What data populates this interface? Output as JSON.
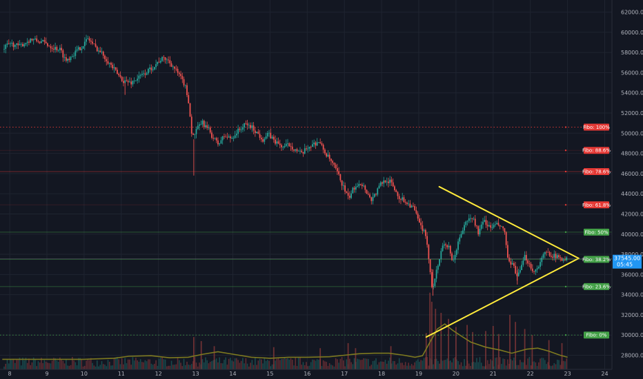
{
  "chart_data": {
    "type": "candlestick",
    "colors": {
      "background": "#131722",
      "grid": "#1f2430",
      "up": "#26a69a",
      "down": "#ef5350",
      "triangle": "#ffeb3b",
      "volume_ma": "#7e7a1f",
      "last_price": "#2196f3"
    },
    "x_axis": {
      "ticks": [
        "8",
        "9",
        "10",
        "11",
        "12",
        "13",
        "14",
        "15",
        "16",
        "17",
        "18",
        "19",
        "20",
        "21",
        "22",
        "23",
        "24"
      ]
    },
    "y_axis": {
      "ylim": [
        26600,
        63200
      ],
      "ticks": [
        "28000.00",
        "30000.00",
        "32000.00",
        "34000.00",
        "36000.00",
        "38000.00",
        "40000.00",
        "42000.00",
        "44000.00",
        "46000.00",
        "48000.00",
        "50000.00",
        "52000.00",
        "54000.00",
        "56000.00",
        "58000.00",
        "60000.00",
        "62000.00"
      ]
    },
    "price_anchors": [
      [
        7.85,
        58300
      ],
      [
        8.05,
        58900
      ],
      [
        8.3,
        58600
      ],
      [
        8.6,
        59300
      ],
      [
        8.95,
        59000
      ],
      [
        9.2,
        58500
      ],
      [
        9.4,
        58300
      ],
      [
        9.55,
        57200
      ],
      [
        9.8,
        58000
      ],
      [
        10.0,
        58700
      ],
      [
        10.15,
        59400
      ],
      [
        10.35,
        58500
      ],
      [
        10.55,
        57800
      ],
      [
        10.75,
        56800
      ],
      [
        10.95,
        55800
      ],
      [
        11.1,
        55200
      ],
      [
        11.3,
        55000
      ],
      [
        11.5,
        55500
      ],
      [
        11.7,
        56000
      ],
      [
        11.9,
        56600
      ],
      [
        12.1,
        57300
      ],
      [
        12.25,
        57400
      ],
      [
        12.4,
        56800
      ],
      [
        12.55,
        56000
      ],
      [
        12.75,
        54800
      ],
      [
        12.85,
        53200
      ],
      [
        12.95,
        49500
      ],
      [
        13.05,
        50200
      ],
      [
        13.2,
        51100
      ],
      [
        13.4,
        50300
      ],
      [
        13.5,
        49600
      ],
      [
        13.65,
        48900
      ],
      [
        13.8,
        49700
      ],
      [
        14.0,
        49500
      ],
      [
        14.2,
        50300
      ],
      [
        14.4,
        50900
      ],
      [
        14.55,
        50600
      ],
      [
        14.7,
        50000
      ],
      [
        14.85,
        49400
      ],
      [
        15.0,
        49900
      ],
      [
        15.2,
        49100
      ],
      [
        15.4,
        48600
      ],
      [
        15.55,
        48900
      ],
      [
        15.75,
        48300
      ],
      [
        15.9,
        47900
      ],
      [
        16.05,
        48600
      ],
      [
        16.2,
        48900
      ],
      [
        16.35,
        49200
      ],
      [
        16.55,
        47900
      ],
      [
        16.7,
        47100
      ],
      [
        16.85,
        46100
      ],
      [
        17.0,
        44800
      ],
      [
        17.15,
        43500
      ],
      [
        17.3,
        44600
      ],
      [
        17.45,
        45200
      ],
      [
        17.6,
        44500
      ],
      [
        17.75,
        43400
      ],
      [
        17.9,
        44100
      ],
      [
        18.0,
        44900
      ],
      [
        18.15,
        45400
      ],
      [
        18.3,
        45100
      ],
      [
        18.5,
        43700
      ],
      [
        18.7,
        43200
      ],
      [
        18.9,
        42600
      ],
      [
        19.05,
        41100
      ],
      [
        19.2,
        40100
      ],
      [
        19.3,
        38000
      ],
      [
        19.4,
        34600
      ],
      [
        19.55,
        36800
      ],
      [
        19.7,
        39200
      ],
      [
        19.85,
        38600
      ],
      [
        19.95,
        37000
      ],
      [
        20.05,
        38500
      ],
      [
        20.2,
        40300
      ],
      [
        20.35,
        41400
      ],
      [
        20.5,
        41600
      ],
      [
        20.65,
        40100
      ],
      [
        20.8,
        41400
      ],
      [
        20.95,
        40600
      ],
      [
        21.1,
        40900
      ],
      [
        21.2,
        40900
      ],
      [
        21.35,
        40200
      ],
      [
        21.45,
        37100
      ],
      [
        21.6,
        36800
      ],
      [
        21.7,
        35700
      ],
      [
        21.8,
        36700
      ],
      [
        21.9,
        37800
      ],
      [
        22.05,
        36800
      ],
      [
        22.15,
        36200
      ],
      [
        22.3,
        37200
      ],
      [
        22.45,
        38200
      ],
      [
        22.6,
        38000
      ],
      [
        22.75,
        37700
      ],
      [
        22.9,
        37600
      ],
      [
        23.0,
        37545
      ]
    ],
    "volume_ma": [
      [
        7.8,
        27600
      ],
      [
        9.0,
        27600
      ],
      [
        10.0,
        27600
      ],
      [
        10.8,
        27700
      ],
      [
        11.2,
        27900
      ],
      [
        11.8,
        27950
      ],
      [
        12.3,
        27750
      ],
      [
        12.8,
        27800
      ],
      [
        13.2,
        28100
      ],
      [
        13.6,
        28350
      ],
      [
        14.0,
        28100
      ],
      [
        14.5,
        27800
      ],
      [
        15.0,
        27700
      ],
      [
        15.5,
        27800
      ],
      [
        16.0,
        27800
      ],
      [
        16.6,
        27850
      ],
      [
        17.0,
        28000
      ],
      [
        17.4,
        28150
      ],
      [
        17.8,
        28200
      ],
      [
        18.2,
        28200
      ],
      [
        18.6,
        28000
      ],
      [
        18.9,
        27800
      ],
      [
        19.1,
        27950
      ],
      [
        19.3,
        29300
      ],
      [
        19.5,
        30600
      ],
      [
        19.7,
        31100
      ],
      [
        19.9,
        30500
      ],
      [
        20.1,
        30000
      ],
      [
        20.4,
        29300
      ],
      [
        20.8,
        28800
      ],
      [
        21.2,
        28500
      ],
      [
        21.5,
        28200
      ],
      [
        21.7,
        28400
      ],
      [
        21.9,
        28600
      ],
      [
        22.2,
        28700
      ],
      [
        22.5,
        28400
      ],
      [
        22.8,
        28000
      ],
      [
        23.0,
        27800
      ]
    ],
    "volume_spikes": [
      [
        12.95,
        29800
      ],
      [
        13.15,
        29400
      ],
      [
        13.5,
        28900
      ],
      [
        15.1,
        28800
      ],
      [
        16.35,
        28700
      ],
      [
        17.1,
        29200
      ],
      [
        17.3,
        28700
      ],
      [
        18.25,
        28900
      ],
      [
        19.2,
        30200
      ],
      [
        19.3,
        34200
      ],
      [
        19.35,
        33300
      ],
      [
        19.45,
        32600
      ],
      [
        19.6,
        32200
      ],
      [
        19.8,
        31600
      ],
      [
        20.0,
        30800
      ],
      [
        20.3,
        31000
      ],
      [
        20.45,
        30300
      ],
      [
        20.8,
        30400
      ],
      [
        21.0,
        30900
      ],
      [
        21.15,
        30100
      ],
      [
        21.45,
        32000
      ],
      [
        21.6,
        31300
      ],
      [
        21.85,
        30600
      ],
      [
        22.05,
        30000
      ],
      [
        22.5,
        29500
      ],
      [
        22.85,
        29200
      ]
    ],
    "fibo_levels": [
      {
        "label": "Fibo: 100%",
        "price": 50600,
        "color": "#e53935",
        "line": "dotted"
      },
      {
        "label": "Fibo: 88.6%",
        "price": 48300,
        "color": "#e53935",
        "line": "faint"
      },
      {
        "label": "Fibo: 78.6%",
        "price": 46200,
        "color": "#e53935",
        "line": "solid"
      },
      {
        "label": "Fibo: 61.8%",
        "price": 42900,
        "color": "#e53935",
        "line": "faint"
      },
      {
        "label": "Fibo:  50%",
        "price": 40200,
        "color": "#43a047",
        "line": "solid"
      },
      {
        "label": "Fibo: 38.2%",
        "price": 37500,
        "color": "#43a047",
        "line": "solid"
      },
      {
        "label": "Fibo: 23.6%",
        "price": 34800,
        "color": "#43a047",
        "line": "solid"
      },
      {
        "label": "Fibo:   0%",
        "price": 30000,
        "color": "#43a047",
        "line": "dotted"
      }
    ],
    "triangle": {
      "upper": [
        [
          19.55,
          44700
        ],
        [
          23.3,
          37600
        ]
      ],
      "lower": [
        [
          19.2,
          29800
        ],
        [
          23.3,
          37600
        ]
      ]
    },
    "last_price": {
      "value": "37545.00",
      "countdown": "05:45",
      "price": 37545
    }
  }
}
